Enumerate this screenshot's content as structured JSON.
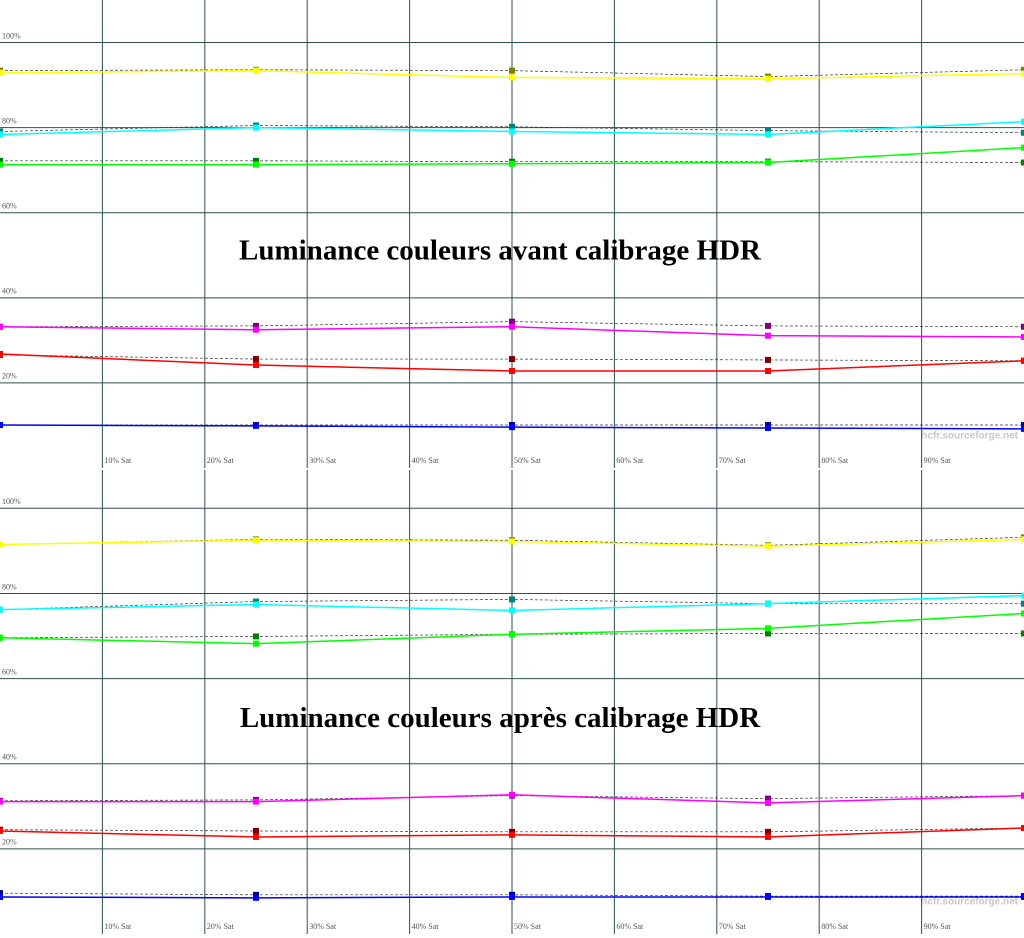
{
  "chart_data": [
    {
      "type": "line",
      "title": "Luminance couleurs avant calibrage HDR",
      "annotation": "hcfr.sourceforge.net",
      "x": [
        0,
        25,
        50,
        75,
        100
      ],
      "xlim": [
        0,
        100
      ],
      "ylim": [
        0,
        110
      ],
      "grid": true,
      "xticks": [
        {
          "value": 10,
          "label": "10% Sat"
        },
        {
          "value": 20,
          "label": "20% Sat"
        },
        {
          "value": 30,
          "label": "30% Sat"
        },
        {
          "value": 40,
          "label": "40% Sat"
        },
        {
          "value": 50,
          "label": "50% Sat"
        },
        {
          "value": 60,
          "label": "60% Sat"
        },
        {
          "value": 70,
          "label": "70% Sat"
        },
        {
          "value": 80,
          "label": "80% Sat"
        },
        {
          "value": 90,
          "label": "90% Sat"
        }
      ],
      "yticks": [
        {
          "value": 20,
          "label": "20%"
        },
        {
          "value": 40,
          "label": "40%"
        },
        {
          "value": 60,
          "label": "60%"
        },
        {
          "value": 80,
          "label": "80%"
        },
        {
          "value": 100,
          "label": "100%"
        }
      ],
      "series": [
        {
          "color": "#808000",
          "line_style": "dashed",
          "values": [
            93.4,
            93.6,
            93.4,
            92.0,
            93.6
          ]
        },
        {
          "color": "#ffff00",
          "line_style": "solid",
          "values": [
            92.9,
            93.4,
            91.8,
            91.5,
            92.7
          ]
        },
        {
          "color": "#008080",
          "line_style": "dashed",
          "values": [
            79.1,
            80.5,
            80.2,
            79.3,
            78.8
          ]
        },
        {
          "color": "#00ffff",
          "line_style": "solid",
          "values": [
            78.4,
            80.0,
            79.1,
            78.4,
            81.4
          ]
        },
        {
          "color": "#008000",
          "line_style": "dashed",
          "values": [
            72.2,
            72.2,
            72.0,
            72.0,
            71.8
          ]
        },
        {
          "color": "#00ff00",
          "line_style": "solid",
          "values": [
            71.3,
            71.3,
            71.5,
            71.8,
            75.3
          ]
        },
        {
          "color": "#800080",
          "line_style": "dashed",
          "values": [
            33.2,
            33.4,
            34.4,
            33.4,
            33.2
          ]
        },
        {
          "color": "#ff00ff",
          "line_style": "solid",
          "values": [
            33.2,
            32.5,
            33.2,
            31.1,
            30.8
          ]
        },
        {
          "color": "#800000",
          "line_style": "dashed",
          "values": [
            26.6,
            25.6,
            25.6,
            25.4,
            25.2
          ]
        },
        {
          "color": "#ff0000",
          "line_style": "solid",
          "values": [
            26.8,
            24.2,
            22.8,
            22.8,
            25.2
          ]
        },
        {
          "color": "#000080",
          "line_style": "dashed",
          "values": [
            10.1,
            10.1,
            10.1,
            10.1,
            10.1
          ]
        },
        {
          "color": "#0000ff",
          "line_style": "solid",
          "values": [
            10.1,
            9.9,
            9.6,
            9.4,
            9.2
          ]
        }
      ]
    },
    {
      "type": "line",
      "title": "Luminance couleurs après calibrage HDR",
      "annotation": "hcfr.sourceforge.net",
      "x": [
        0,
        25,
        50,
        75,
        100
      ],
      "xlim": [
        0,
        100
      ],
      "ylim": [
        0,
        109
      ],
      "grid": true,
      "xticks": [
        {
          "value": 10,
          "label": "10% Sat"
        },
        {
          "value": 20,
          "label": "20% Sat"
        },
        {
          "value": 30,
          "label": "30% Sat"
        },
        {
          "value": 40,
          "label": "40% Sat"
        },
        {
          "value": 50,
          "label": "50% Sat"
        },
        {
          "value": 60,
          "label": "60% Sat"
        },
        {
          "value": 70,
          "label": "70% Sat"
        },
        {
          "value": 80,
          "label": "80% Sat"
        },
        {
          "value": 90,
          "label": "90% Sat"
        }
      ],
      "yticks": [
        {
          "value": 20,
          "label": "20%"
        },
        {
          "value": 40,
          "label": "40%"
        },
        {
          "value": 60,
          "label": "60%"
        },
        {
          "value": 80,
          "label": "80%"
        },
        {
          "value": 100,
          "label": "100%"
        }
      ],
      "series": [
        {
          "color": "#808000",
          "line_style": "dashed",
          "values": [
            91.5,
            92.7,
            92.5,
            91.3,
            93.2
          ]
        },
        {
          "color": "#ffff00",
          "line_style": "solid",
          "values": [
            91.5,
            92.5,
            92.2,
            91.1,
            92.7
          ]
        },
        {
          "color": "#008080",
          "line_style": "dashed",
          "values": [
            76.2,
            78.1,
            78.6,
            77.6,
            77.6
          ]
        },
        {
          "color": "#00ffff",
          "line_style": "solid",
          "values": [
            76.2,
            77.4,
            76.0,
            77.6,
            79.5
          ]
        },
        {
          "color": "#008000",
          "line_style": "dashed",
          "values": [
            69.6,
            69.9,
            70.4,
            70.6,
            70.6
          ]
        },
        {
          "color": "#00ff00",
          "line_style": "solid",
          "values": [
            69.6,
            68.2,
            70.4,
            71.8,
            75.3
          ]
        },
        {
          "color": "#800080",
          "line_style": "dashed",
          "values": [
            31.3,
            31.5,
            32.5,
            31.8,
            32.5
          ]
        },
        {
          "color": "#ff00ff",
          "line_style": "solid",
          "values": [
            31.1,
            31.1,
            32.7,
            30.8,
            32.5
          ]
        },
        {
          "color": "#800000",
          "line_style": "dashed",
          "values": [
            24.5,
            24.2,
            24.0,
            24.0,
            24.9
          ]
        },
        {
          "color": "#ff0000",
          "line_style": "solid",
          "values": [
            24.2,
            22.8,
            23.3,
            22.8,
            24.9
          ]
        },
        {
          "color": "#000080",
          "line_style": "dashed",
          "values": [
            9.6,
            9.2,
            9.2,
            8.9,
            8.9
          ]
        },
        {
          "color": "#0000ff",
          "line_style": "solid",
          "values": [
            8.7,
            8.5,
            8.7,
            8.7,
            8.7
          ]
        }
      ]
    }
  ]
}
